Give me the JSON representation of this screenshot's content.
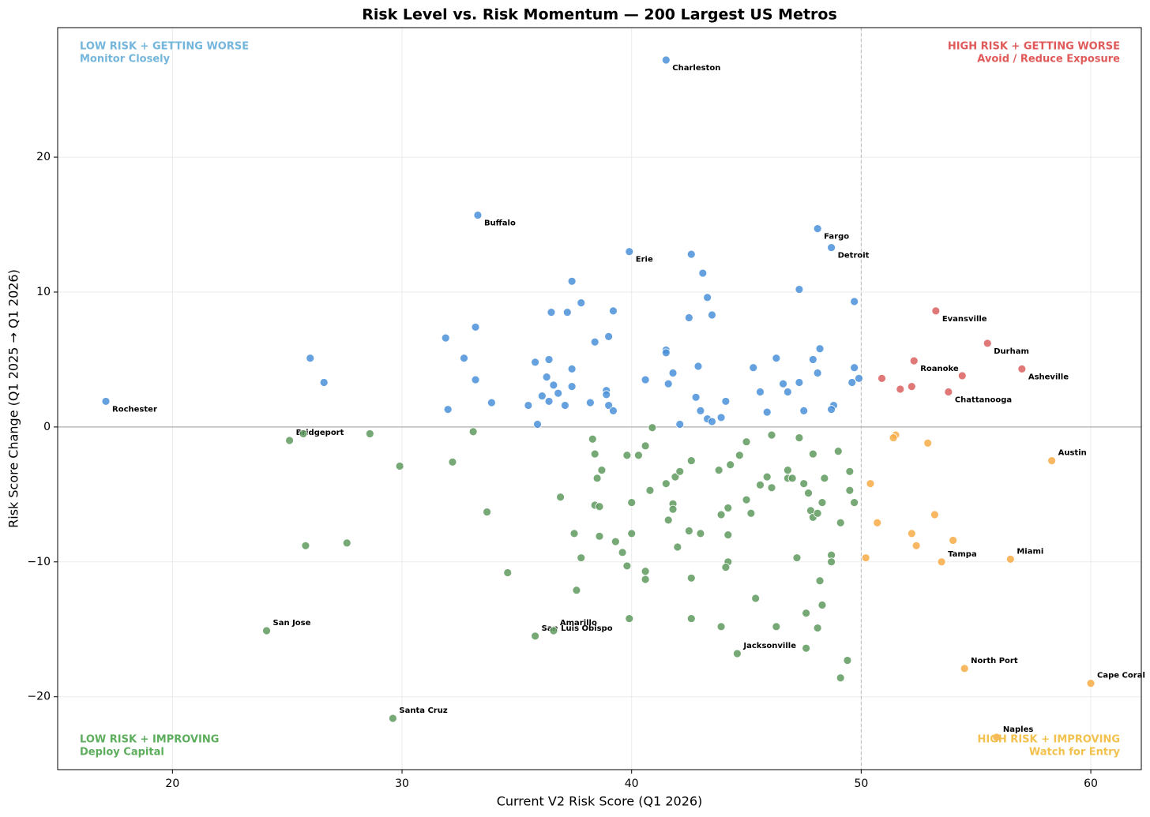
{
  "chart_data": {
    "type": "scatter",
    "title": "Risk Level vs. Risk Momentum — 200 Largest US Metros",
    "x_label": "Current V2 Risk Score (Q1 2026)",
    "y_label": "Risk Score Change (Q1 2025 → Q1 2026)",
    "xlim": [
      15,
      62.2
    ],
    "ylim": [
      -25.4,
      29.6
    ],
    "xticks": [
      20,
      30,
      40,
      50,
      60
    ],
    "yticks": [
      {
        "value": -20,
        "label": "−20"
      },
      {
        "value": -10,
        "label": "−10"
      },
      0,
      10,
      20
    ],
    "grid": true,
    "vline": 50,
    "hline": 0,
    "quadrant_labels": [
      {
        "corner": "top-left",
        "title": "LOW RISK + GETTING WORSE",
        "subtitle": "Monitor Closely",
        "color": "#74b6db"
      },
      {
        "corner": "top-right",
        "title": "HIGH RISK + GETTING WORSE",
        "subtitle": "Avoid / Reduce Exposure",
        "color": "#e05a5a"
      },
      {
        "corner": "bottom-left",
        "title": "LOW RISK + IMPROVING",
        "subtitle": "Deploy Capital",
        "color": "#5cad5c"
      },
      {
        "corner": "bottom-right",
        "title": "HIGH RISK + IMPROVING",
        "subtitle": "Watch for Entry",
        "color": "#f2c14e"
      }
    ],
    "series": [
      {
        "color": "#4a90d9",
        "x": [
          17.1,
          41.5,
          33.3,
          39.9,
          48.1,
          48.7,
          42.6,
          43.1,
          37.4,
          47.3,
          43.3,
          49.7,
          37.8,
          36.5,
          37.2,
          39.2,
          42.5,
          43.5,
          33.2,
          31.9,
          39.0,
          38.4,
          41.5,
          41.5,
          48.2,
          26.0,
          32.7,
          35.8,
          36.4,
          46.3,
          47.9,
          37.4,
          45.3,
          42.9,
          49.7,
          41.8,
          48.1,
          36.3,
          26.6,
          33.2,
          40.6,
          49.9,
          41.6,
          36.6,
          46.6,
          47.3,
          49.6,
          37.4,
          45.6,
          46.8,
          38.9,
          38.9,
          36.8,
          36.1,
          42.8,
          33.9,
          38.2,
          36.4,
          44.1,
          48.8,
          35.5,
          39.0,
          37.1,
          32.0,
          39.2,
          43.0,
          45.9,
          47.5,
          48.7,
          43.9,
          43.3,
          43.5,
          35.9,
          42.1
        ],
        "y": [
          1.9,
          27.2,
          15.7,
          13.0,
          14.7,
          13.3,
          12.8,
          11.4,
          10.8,
          10.2,
          9.6,
          9.3,
          9.2,
          8.5,
          8.5,
          8.6,
          8.1,
          8.3,
          7.4,
          6.6,
          6.7,
          6.3,
          5.7,
          5.5,
          5.8,
          5.1,
          5.1,
          4.8,
          5.0,
          5.1,
          5.0,
          4.3,
          4.4,
          4.5,
          4.4,
          4.0,
          4.0,
          3.7,
          3.3,
          3.5,
          3.5,
          3.6,
          3.2,
          3.1,
          3.2,
          3.3,
          3.3,
          3.0,
          2.6,
          2.6,
          2.7,
          2.4,
          2.5,
          2.3,
          2.2,
          1.8,
          1.8,
          1.9,
          1.9,
          1.6,
          1.6,
          1.6,
          1.6,
          1.3,
          1.2,
          1.2,
          1.1,
          1.2,
          1.3,
          0.7,
          0.6,
          0.4,
          0.2,
          0.2
        ],
        "labels": [
          "Rochester",
          "Charleston",
          "Buffalo",
          "Erie",
          "Fargo",
          "Detroit",
          null,
          null,
          null,
          null,
          null,
          null,
          null,
          null,
          null,
          null,
          null,
          null,
          null,
          null,
          null,
          null,
          null,
          null,
          null,
          null,
          null,
          null,
          null,
          null,
          null,
          null,
          null,
          null,
          null,
          null,
          null,
          null,
          null,
          null,
          null,
          null,
          null,
          null,
          null,
          null,
          null,
          null,
          null,
          null,
          null,
          null,
          null,
          null,
          null,
          null,
          null,
          null,
          null,
          null,
          null,
          null,
          null,
          null,
          null,
          null,
          null,
          null,
          null,
          null,
          null,
          null,
          null,
          null
        ]
      },
      {
        "color": "#d9605f",
        "x": [
          53.25,
          55.5,
          52.3,
          57.0,
          53.8,
          54.4,
          52.2,
          51.7,
          50.9
        ],
        "y": [
          8.6,
          6.2,
          4.9,
          4.3,
          2.6,
          3.8,
          3.0,
          2.8,
          3.6
        ],
        "labels": [
          "Evansville",
          "Durham",
          "Roanoke",
          "Asheville",
          "Chattanooga",
          null,
          null,
          null,
          null
        ]
      },
      {
        "color": "#5f9a5f",
        "x": [
          25.1,
          24.1,
          29.6,
          35.8,
          36.6,
          44.6,
          25.7,
          28.6,
          33.1,
          29.9,
          32.2,
          25.8,
          27.6,
          33.7,
          34.6,
          36.9,
          37.6,
          37.5,
          37.8,
          38.3,
          38.4,
          38.7,
          38.5,
          38.4,
          38.6,
          38.6,
          39.3,
          39.6,
          39.8,
          39.8,
          39.9,
          40.0,
          40.0,
          40.3,
          40.6,
          40.6,
          40.6,
          40.9,
          40.8,
          41.5,
          41.6,
          41.8,
          41.8,
          41.9,
          42.1,
          42.0,
          42.6,
          42.5,
          42.6,
          42.6,
          43.0,
          43.8,
          44.3,
          44.7,
          43.9,
          44.2,
          44.2,
          44.2,
          44.1,
          43.9,
          45.0,
          45.6,
          45.9,
          46.1,
          45.0,
          45.2,
          45.4,
          46.3,
          46.1,
          47.3,
          46.8,
          46.8,
          47.0,
          47.5,
          47.7,
          47.9,
          48.4,
          49.0,
          49.5,
          49.5,
          48.3,
          47.8,
          47.9,
          48.1,
          49.1,
          49.7,
          48.7,
          48.7,
          47.2,
          48.2,
          48.3,
          47.6,
          48.1,
          47.6,
          49.4,
          49.1
        ],
        "y": [
          -1.0,
          -15.1,
          -21.6,
          -15.5,
          -15.1,
          -16.8,
          -0.5,
          -0.5,
          -0.35,
          -2.9,
          -2.6,
          -8.8,
          -8.6,
          -6.3,
          -10.8,
          -5.2,
          -12.1,
          -7.9,
          -9.7,
          -0.9,
          -2.0,
          -3.2,
          -3.8,
          -5.8,
          -5.9,
          -8.1,
          -8.5,
          -9.3,
          -10.3,
          -2.1,
          -14.2,
          -5.6,
          -7.9,
          -2.1,
          -1.4,
          -10.7,
          -11.3,
          -0.05,
          -4.7,
          -4.2,
          -6.9,
          -5.7,
          -6.1,
          -3.7,
          -3.3,
          -8.9,
          -2.5,
          -7.7,
          -11.2,
          -14.2,
          -7.9,
          -3.2,
          -2.8,
          -2.1,
          -6.5,
          -6.0,
          -8.0,
          -10.0,
          -10.4,
          -14.8,
          -1.1,
          -4.3,
          -3.7,
          -4.5,
          -5.4,
          -6.4,
          -12.7,
          -14.8,
          -0.6,
          -0.8,
          -3.2,
          -3.8,
          -3.8,
          -4.2,
          -4.9,
          -2.0,
          -3.8,
          -1.8,
          -3.3,
          -4.7,
          -5.6,
          -6.2,
          -6.7,
          -6.4,
          -7.1,
          -5.6,
          -9.5,
          -10.0,
          -9.7,
          -11.4,
          -13.2,
          -13.8,
          -14.9,
          -16.4,
          -17.3,
          -18.6
        ],
        "labels": [
          "Bridgeport",
          "San Jose",
          "Santa Cruz",
          "San Luis Obispo",
          "Amarillo",
          "Jacksonville",
          null,
          null,
          null,
          null,
          null,
          null,
          null,
          null,
          null,
          null,
          null,
          null,
          null,
          null,
          null,
          null,
          null,
          null,
          null,
          null,
          null,
          null,
          null,
          null,
          null,
          null,
          null,
          null,
          null,
          null,
          null,
          null,
          null,
          null,
          null,
          null,
          null,
          null,
          null,
          null,
          null,
          null,
          null,
          null,
          null,
          null,
          null,
          null,
          null,
          null,
          null,
          null,
          null,
          null,
          null,
          null,
          null,
          null,
          null,
          null,
          null,
          null,
          null,
          null,
          null,
          null,
          null,
          null,
          null,
          null,
          null,
          null,
          null,
          null,
          null,
          null,
          null,
          null,
          null,
          null,
          null,
          null,
          null,
          null,
          null,
          null,
          null,
          null,
          null
        ]
      },
      {
        "color": "#f7ac45",
        "x": [
          58.3,
          53.5,
          56.5,
          54.5,
          60.0,
          55.9,
          51.5,
          51.4,
          52.9,
          50.4,
          50.7,
          52.2,
          53.2,
          54.0,
          52.4,
          50.2
        ],
        "y": [
          -2.5,
          -10.0,
          -9.8,
          -17.9,
          -19.0,
          -23.0,
          -0.6,
          -0.8,
          -1.2,
          -4.2,
          -7.1,
          -7.9,
          -6.5,
          -8.4,
          -8.8,
          -9.7
        ],
        "labels": [
          "Austin",
          "Tampa",
          "Miami",
          "North Port",
          "Cape Coral",
          "Naples",
          null,
          null,
          null,
          null,
          null,
          null,
          null,
          null,
          null,
          null
        ]
      }
    ]
  }
}
